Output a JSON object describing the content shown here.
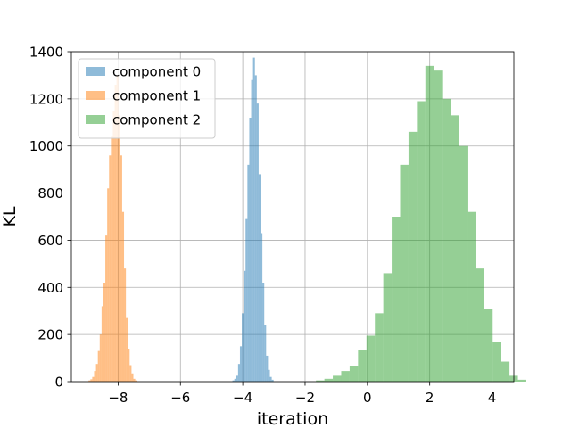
{
  "chart_data": {
    "type": "bar",
    "title": "",
    "xlabel": "iteration",
    "ylabel": "KL",
    "xlim": [
      -9.5,
      4.7
    ],
    "ylim": [
      0,
      1400
    ],
    "xticks": [
      -8,
      -6,
      -4,
      -2,
      0,
      2,
      4
    ],
    "xtick_labels": [
      "−8",
      "−6",
      "−4",
      "−2",
      "0",
      "2",
      "4"
    ],
    "yticks": [
      0,
      200,
      400,
      600,
      800,
      1000,
      1200,
      1400
    ],
    "ytick_labels": [
      "0",
      "200",
      "400",
      "600",
      "800",
      "1000",
      "1200",
      "1400"
    ],
    "grid": true,
    "legend_position": "upper-left",
    "alpha": 0.5,
    "series": [
      {
        "name": "component 0",
        "color": "#1f77b4",
        "bin_start": -4.33,
        "bin_width": 0.06,
        "counts": [
          5,
          12,
          25,
          75,
          150,
          290,
          470,
          690,
          920,
          1120,
          1280,
          1375,
          1300,
          1180,
          880,
          630,
          420,
          240,
          110,
          50,
          20,
          8
        ]
      },
      {
        "name": "component 1",
        "color": "#ff7f0e",
        "bin_start": -8.95,
        "bin_width": 0.06,
        "counts": [
          5,
          10,
          20,
          45,
          75,
          130,
          200,
          320,
          420,
          620,
          820,
          960,
          1040,
          1150,
          1260,
          1300,
          1130,
          960,
          720,
          480,
          270,
          140,
          70,
          35,
          12,
          5
        ]
      },
      {
        "name": "component 2",
        "color": "#2ca02c",
        "bin_start": -1.65,
        "bin_width": 0.27,
        "counts": [
          5,
          12,
          25,
          45,
          65,
          135,
          195,
          290,
          460,
          700,
          920,
          1060,
          1190,
          1340,
          1320,
          1200,
          1130,
          1000,
          720,
          480,
          310,
          170,
          85,
          25,
          8
        ]
      }
    ]
  }
}
